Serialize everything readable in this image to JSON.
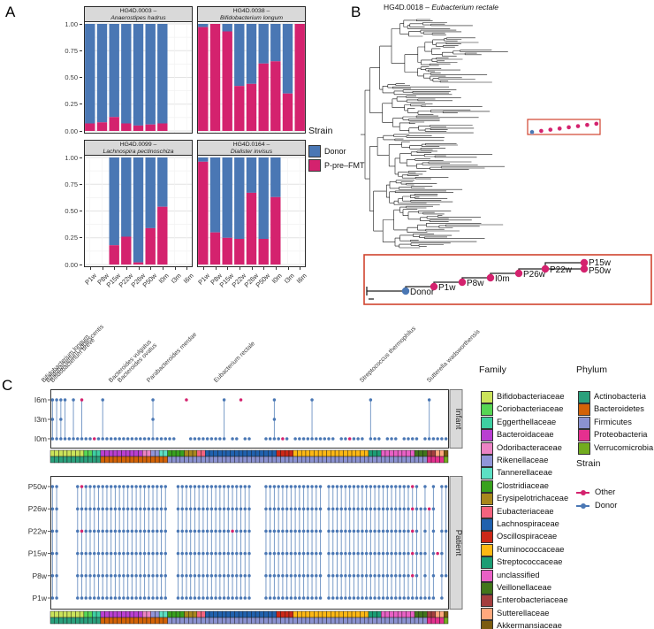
{
  "panels": {
    "a": "A",
    "b": "B",
    "c": "C"
  },
  "colors": {
    "donor_blue": "#4a77b4",
    "other_pink": "#d4226e",
    "connector_blue": "#7a9cc8",
    "red_box": "#d0442e",
    "facet_strip_bg": "#d9d9d9"
  },
  "chart_data": [
    {
      "type": "bar",
      "id": "panelA",
      "stacking": "proportion",
      "categories": [
        "P1w",
        "P8w",
        "P15w",
        "P22w",
        "P26w",
        "P50w",
        "I0m",
        "I3m",
        "I6m"
      ],
      "y_ticks": [
        "1.00",
        "0.75",
        "0.50",
        "0.25",
        "0.00"
      ],
      "ylim": [
        0,
        1
      ],
      "legend": {
        "title": "Strain",
        "items": [
          {
            "label": "Donor",
            "color": "#4a77b4"
          },
          {
            "label": "P-pre–FMT",
            "color": "#d4226e"
          }
        ]
      },
      "facets": [
        {
          "code": "HG4D.0003 –",
          "species": "Anaerostipes hadrus",
          "p_pre_fmt": [
            0.07,
            0.08,
            0.13,
            0.07,
            0.05,
            0.06,
            0.07,
            null,
            null
          ]
        },
        {
          "code": "HG4D.0038 –",
          "species": "Bifidobacterium longum",
          "p_pre_fmt": [
            0.97,
            1.0,
            0.93,
            0.42,
            0.44,
            0.63,
            0.65,
            0.35,
            1.0
          ]
        },
        {
          "code": "HG4D.0099 –",
          "species": "Lachnospira pectinoschiza",
          "p_pre_fmt": [
            null,
            null,
            0.18,
            0.26,
            0.02,
            0.34,
            0.54,
            null,
            null
          ]
        },
        {
          "code": "HG4D.0164 –",
          "species": "Dialister invisus",
          "p_pre_fmt": [
            0.96,
            0.3,
            0.25,
            0.24,
            0.67,
            0.24,
            0.63,
            null,
            null
          ]
        }
      ]
    },
    {
      "type": "line",
      "subtype": "phylogenetic-tree",
      "id": "panelB",
      "title_code": "HG4D.0018 –",
      "title_species": "Eubacterium rectale",
      "inset_tips": [
        {
          "label": "Donor",
          "strain": "Donor"
        },
        {
          "label": "P1w",
          "strain": "Other"
        },
        {
          "label": "P8w",
          "strain": "Other"
        },
        {
          "label": "I0m",
          "strain": "Other"
        },
        {
          "label": "P26w",
          "strain": "Other"
        },
        {
          "label": "P22w",
          "strain": "Other"
        },
        {
          "label": "P15w",
          "strain": "Other"
        },
        {
          "label": "P50w",
          "strain": "Other"
        }
      ]
    },
    {
      "type": "scatter",
      "subtype": "strain-presence-matrix",
      "id": "panelC",
      "strips": [
        "Infant",
        "Patient"
      ],
      "infant_rows": [
        "I6m",
        "I3m",
        "I0m"
      ],
      "patient_rows": [
        "P50w",
        "P26w",
        "P22w",
        "P15w",
        "P8w",
        "P1w"
      ],
      "n_strains": 95,
      "legend_titles": {
        "family": "Family",
        "phylum": "Phylum",
        "strain": "Strain"
      },
      "strain_legend": [
        {
          "label": "Other",
          "color": "#d4226e"
        },
        {
          "label": "Donor",
          "color": "#4a77b4"
        }
      ],
      "phyla": [
        {
          "name": "Actinobacteria",
          "color": "#2ba07c"
        },
        {
          "name": "Bacteroidetes",
          "color": "#d26207"
        },
        {
          "name": "Firmicutes",
          "color": "#8b92d0"
        },
        {
          "name": "Proteobacteria",
          "color": "#e5308f"
        },
        {
          "name": "Verrucomicrobia",
          "color": "#72ac1f"
        }
      ],
      "families": [
        {
          "name": "Bifidobacteriaceae",
          "color": "#cbe35a",
          "phylum": "Actinobacteria"
        },
        {
          "name": "Coriobacteriaceae",
          "color": "#56d654",
          "phylum": "Actinobacteria"
        },
        {
          "name": "Eggerthellaceae",
          "color": "#3ecfa2",
          "phylum": "Actinobacteria"
        },
        {
          "name": "Bacteroidaceae",
          "color": "#b93fd1",
          "phylum": "Bacteroidetes"
        },
        {
          "name": "Odoribacteraceae",
          "color": "#ec83c4",
          "phylum": "Bacteroidetes"
        },
        {
          "name": "Rikenellaceae",
          "color": "#9095d8",
          "phylum": "Bacteroidetes"
        },
        {
          "name": "Tannerellaceae",
          "color": "#5ce0c4",
          "phylum": "Bacteroidetes"
        },
        {
          "name": "Clostridiaceae",
          "color": "#38a11e",
          "phylum": "Firmicutes"
        },
        {
          "name": "Erysipelotrichaceae",
          "color": "#a8871c",
          "phylum": "Firmicutes"
        },
        {
          "name": "Eubacteriaceae",
          "color": "#f4637e",
          "phylum": "Firmicutes"
        },
        {
          "name": "Lachnospiraceae",
          "color": "#2061ae",
          "phylum": "Firmicutes"
        },
        {
          "name": "Oscillospiraceae",
          "color": "#cc2817",
          "phylum": "Firmicutes"
        },
        {
          "name": "Ruminococcaceae",
          "color": "#fdb813",
          "phylum": "Firmicutes"
        },
        {
          "name": "Streptococcaceae",
          "color": "#1b9d74",
          "phylum": "Firmicutes"
        },
        {
          "name": "unclassified",
          "color": "#e960c5",
          "phylum": "Firmicutes"
        },
        {
          "name": "Veillonellaceae",
          "color": "#41761b",
          "phylum": "Firmicutes"
        },
        {
          "name": "Enterobacteriaceae",
          "color": "#a43e3e",
          "phylum": "Proteobacteria"
        },
        {
          "name": "Sutterellaceae",
          "color": "#ffa87d",
          "phylum": "Proteobacteria"
        },
        {
          "name": "Akkermansiaceae",
          "color": "#7b5b10",
          "phylum": "Verrucomicrobia"
        }
      ],
      "species_labels": [
        {
          "name": "Bifidobacterium longum",
          "col": 1
        },
        {
          "name": "Bifidobacterium adolescentis",
          "col": 2
        },
        {
          "name": "Bifidobacterium breve",
          "col": 3
        },
        {
          "name": "Bacteroides vulgatus",
          "col": 17
        },
        {
          "name": "Bacteroides ovatus",
          "col": 19
        },
        {
          "name": "Parabacteroides merdae",
          "col": 26
        },
        {
          "name": "Eubacterium rectale",
          "col": 42
        },
        {
          "name": "Streptococcus thermophilus",
          "col": 77
        },
        {
          "name": "Sutterella wadsworthensis",
          "col": 93
        }
      ],
      "columns": [
        [
          0,
          "bbb",
          "bbbbbb"
        ],
        [
          0,
          "b-b",
          "bbbbbb"
        ],
        [
          0,
          "bbb",
          "------"
        ],
        [
          0,
          "b-b",
          "------"
        ],
        [
          0,
          "--b",
          "------"
        ],
        [
          0,
          "b-b",
          "------"
        ],
        [
          0,
          "--b",
          "bbbbbb"
        ],
        [
          0,
          "p-b",
          "pbpbbb"
        ],
        [
          1,
          "--b",
          "bbbbbb"
        ],
        [
          1,
          "--b",
          "bbbbbb"
        ],
        [
          2,
          "--p",
          "bbbbbb"
        ],
        [
          2,
          "--b",
          "bbbbbb"
        ],
        [
          3,
          "b-b",
          "bbbbbb"
        ],
        [
          3,
          "--b",
          "bbbbbb"
        ],
        [
          3,
          "--b",
          "bbbbbb"
        ],
        [
          3,
          "--b",
          "bbbbbb"
        ],
        [
          3,
          "--b",
          "bbbbbb"
        ],
        [
          3,
          "--b",
          "bbbbbb"
        ],
        [
          3,
          "--b",
          "bbbbbb"
        ],
        [
          3,
          "--b",
          "bbbbbb"
        ],
        [
          3,
          "--b",
          "bbbbbb"
        ],
        [
          3,
          "--b",
          "bbbbbb"
        ],
        [
          4,
          "--b",
          "bbbbbb"
        ],
        [
          4,
          "--b",
          "bbbbbb"
        ],
        [
          5,
          "bbb",
          "bbbbbb"
        ],
        [
          5,
          "--b",
          "bbbbbb"
        ],
        [
          6,
          "--b",
          "bbbbbb"
        ],
        [
          6,
          "--b",
          "bbbbbb"
        ],
        [
          7,
          "--b",
          "------"
        ],
        [
          7,
          "--b",
          "------"
        ],
        [
          7,
          "---",
          "bbbbbb"
        ],
        [
          7,
          "---",
          "bbbbbb"
        ],
        [
          8,
          "p--",
          "bbbbbb"
        ],
        [
          8,
          "--b",
          "bbbbbb"
        ],
        [
          8,
          "--b",
          "bbbbbb"
        ],
        [
          9,
          "--b",
          "bbbbbb"
        ],
        [
          9,
          "--b",
          "bbbbbb"
        ],
        [
          10,
          "--b",
          "bbbbbb"
        ],
        [
          10,
          "--b",
          "bbbbbb"
        ],
        [
          10,
          "--b",
          "bbbbbb"
        ],
        [
          10,
          "--b",
          "bbbbbb"
        ],
        [
          10,
          "b-b",
          "bbbbbb"
        ],
        [
          10,
          "---",
          "bbbbbb"
        ],
        [
          10,
          "--b",
          "bbpbbb"
        ],
        [
          10,
          "--b",
          "bbbbbb"
        ],
        [
          10,
          "p--",
          "bbbbbb"
        ],
        [
          10,
          "--b",
          "bbbbbb"
        ],
        [
          10,
          "--b",
          "bbbbbb"
        ],
        [
          10,
          "---",
          "------"
        ],
        [
          10,
          "---",
          "------"
        ],
        [
          10,
          "---",
          "------"
        ],
        [
          10,
          "--b",
          "bbbbbb"
        ],
        [
          10,
          "--b",
          "bbbbbb"
        ],
        [
          10,
          "bbb",
          "bbbbbb"
        ],
        [
          11,
          "--b",
          "bbbbbb"
        ],
        [
          11,
          "--p",
          "bbbbbb"
        ],
        [
          11,
          "--b",
          "bbbbbb"
        ],
        [
          11,
          "---",
          "bbbbbb"
        ],
        [
          12,
          "--b",
          "bbbbbb"
        ],
        [
          12,
          "--b",
          "bbbbbb"
        ],
        [
          12,
          "--b",
          "bbbbbb"
        ],
        [
          12,
          "--b",
          "bbbbbb"
        ],
        [
          12,
          "b-b",
          "bbbbbb"
        ],
        [
          12,
          "--b",
          "bbbbbb"
        ],
        [
          12,
          "--b",
          "bbbbbb"
        ],
        [
          12,
          "--b",
          "------"
        ],
        [
          12,
          "--b",
          "bbbbbb"
        ],
        [
          12,
          "--b",
          "bbbbbb"
        ],
        [
          12,
          "---",
          "bbbbbb"
        ],
        [
          12,
          "--b",
          "bbbbbb"
        ],
        [
          12,
          "--b",
          "bbbbbb"
        ],
        [
          12,
          "--p",
          "bbbbbb"
        ],
        [
          12,
          "--b",
          "bbbbbb"
        ],
        [
          12,
          "--b",
          "bbbbbb"
        ],
        [
          12,
          "--b",
          "bbbbbb"
        ],
        [
          12,
          "---",
          "bbbbbb"
        ],
        [
          13,
          "b-b",
          "bbbbbb"
        ],
        [
          13,
          "--b",
          "bbbbbb"
        ],
        [
          13,
          "--b",
          "bbbbbb"
        ],
        [
          14,
          "---",
          "bbbbbb"
        ],
        [
          14,
          "--b",
          "bbbbbb"
        ],
        [
          14,
          "--b",
          "bbbbbb"
        ],
        [
          14,
          "--b",
          "bbbbbb"
        ],
        [
          14,
          "---",
          "bbbbbb"
        ],
        [
          14,
          "--b",
          "bbbbbb"
        ],
        [
          14,
          "--b",
          "bbbbbb"
        ],
        [
          14,
          "--b",
          "pppppb"
        ],
        [
          15,
          "--b",
          "bbbbbb"
        ],
        [
          15,
          "---",
          "-b-b-b"
        ],
        [
          15,
          "--b",
          "bbbbbb"
        ],
        [
          16,
          "b-b",
          "-p---b"
        ],
        [
          16,
          "--b",
          "bbbbbb"
        ],
        [
          17,
          "--b",
          "---p--"
        ],
        [
          17,
          "--b",
          "b-bbbb"
        ],
        [
          18,
          "--b",
          "b-b-b-"
        ]
      ]
    }
  ]
}
